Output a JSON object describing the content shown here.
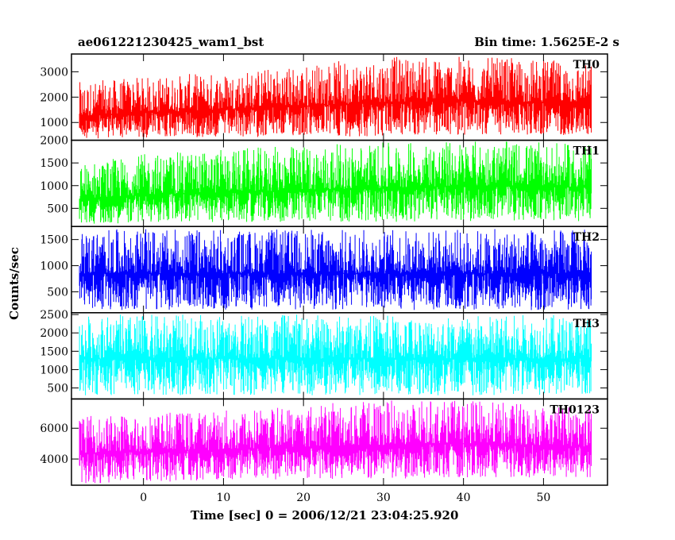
{
  "chart_data": {
    "type": "line",
    "title": "ae061221230425_wam1_bst",
    "subtitle": "Bin time: 1.5625E-2 s",
    "xlabel": "Time [sec] 0 = 2006/12/21 23:04:25.920",
    "ylabel": "Counts/sec",
    "xlim": [
      -9,
      58
    ],
    "x_ticks": [
      0,
      10,
      20,
      30,
      40,
      50
    ],
    "x_tick_labels": [
      "0",
      "10",
      "20",
      "30",
      "40",
      "50"
    ],
    "x_data_range": [
      -8,
      56
    ],
    "panels": [
      {
        "name": "TH0",
        "color": "#ff0000",
        "ylim": [
          300,
          3700
        ],
        "y_ticks": [
          1000,
          2000,
          3000
        ],
        "y_tick_labels": [
          "1000",
          "2000",
          "3000"
        ],
        "x": [
          -8,
          0,
          10,
          20,
          30,
          40,
          50,
          56
        ],
        "mean": [
          1250,
          1400,
          1500,
          1650,
          1800,
          1850,
          1800,
          1800
        ],
        "low": [
          350,
          400,
          400,
          450,
          450,
          500,
          500,
          500
        ],
        "high": [
          2600,
          2800,
          3000,
          3300,
          3600,
          3600,
          3500,
          3300
        ]
      },
      {
        "name": "TH1",
        "color": "#00ff00",
        "ylim": [
          100,
          2000
        ],
        "y_ticks": [
          500,
          1000,
          1500,
          2000
        ],
        "y_tick_labels": [
          "500",
          "1000",
          "1500",
          "2000"
        ],
        "x": [
          -8,
          0,
          10,
          20,
          30,
          40,
          50,
          56
        ],
        "mean": [
          700,
          800,
          850,
          900,
          950,
          1000,
          1000,
          950
        ],
        "low": [
          150,
          180,
          200,
          200,
          200,
          220,
          220,
          200
        ],
        "high": [
          1500,
          1700,
          1800,
          1900,
          1950,
          2000,
          1950,
          1900
        ]
      },
      {
        "name": "TH2",
        "color": "#0000ff",
        "ylim": [
          100,
          1750
        ],
        "y_ticks": [
          500,
          1000,
          1500
        ],
        "y_tick_labels": [
          "500",
          "1000",
          "1500"
        ],
        "x": [
          -8,
          0,
          10,
          20,
          30,
          40,
          50,
          56
        ],
        "mean": [
          850,
          850,
          850,
          850,
          850,
          850,
          850,
          850
        ],
        "low": [
          150,
          150,
          150,
          150,
          150,
          150,
          150,
          150
        ],
        "high": [
          1700,
          1700,
          1700,
          1700,
          1700,
          1700,
          1700,
          1700
        ]
      },
      {
        "name": "TH3",
        "color": "#00ffff",
        "ylim": [
          200,
          2550
        ],
        "y_ticks": [
          500,
          1000,
          1500,
          2000,
          2500
        ],
        "y_tick_labels": [
          "500",
          "1000",
          "1500",
          "2000",
          "2500"
        ],
        "x": [
          -8,
          0,
          10,
          20,
          30,
          40,
          50,
          56
        ],
        "mean": [
          1300,
          1300,
          1300,
          1300,
          1300,
          1300,
          1300,
          1300
        ],
        "low": [
          300,
          300,
          300,
          300,
          300,
          300,
          300,
          300
        ],
        "high": [
          2500,
          2500,
          2500,
          2500,
          2500,
          2500,
          2500,
          2500
        ]
      },
      {
        "name": "TH0123",
        "color": "#ff00ff",
        "ylim": [
          2300,
          7900
        ],
        "y_ticks": [
          4000,
          6000
        ],
        "y_tick_labels": [
          "4000",
          "6000"
        ],
        "x": [
          -8,
          0,
          10,
          20,
          30,
          40,
          50,
          56
        ],
        "mean": [
          4400,
          4500,
          4600,
          4800,
          4900,
          5000,
          4900,
          4800
        ],
        "low": [
          2400,
          2500,
          2600,
          2700,
          2700,
          2800,
          2800,
          2800
        ],
        "high": [
          6800,
          7000,
          7200,
          7600,
          7800,
          7800,
          7600,
          7400
        ]
      }
    ],
    "grid": false,
    "legend": "panel labels top-right"
  }
}
